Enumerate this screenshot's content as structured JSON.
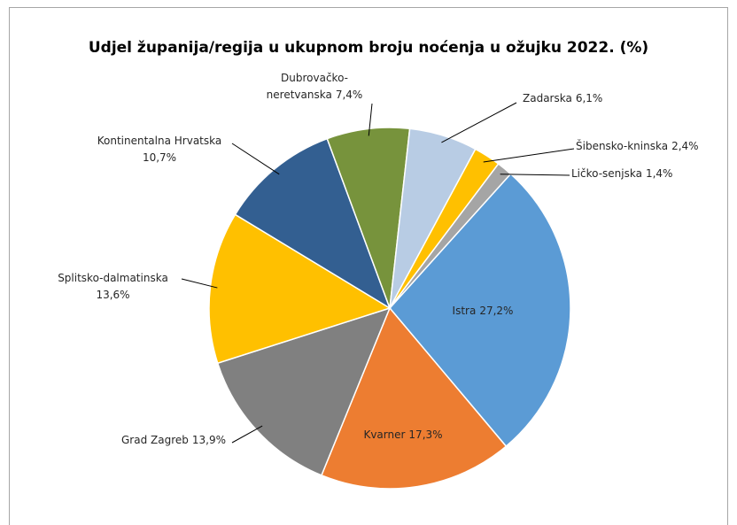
{
  "chart_data": {
    "type": "pie",
    "title": "Udjel županija/regija u ukupnom broju noćenja u ožujku 2022. (%)",
    "categories": [
      "Istra",
      "Kvarner",
      "Grad Zagreb",
      "Splitsko-dalmatinska",
      "Kontinentalna Hrvatska",
      "Dubrovačko-neretvanska",
      "Zadarska",
      "Šibensko-kninska",
      "Ličko-senjska"
    ],
    "values": [
      27.2,
      17.3,
      13.9,
      13.6,
      10.7,
      7.4,
      6.1,
      2.4,
      1.4
    ],
    "value_labels": [
      "27,2%",
      "17,3%",
      "13,9%",
      "13,6%",
      "10,7%",
      "7,4%",
      "6,1%",
      "2,4%",
      "1,4%"
    ],
    "colors": [
      "#5b9bd5",
      "#ed7d31",
      "#808080",
      "#ffc000",
      "#335f91",
      "#77933c",
      "#b8cce4",
      "#ffc000",
      "#a5a5a5"
    ]
  }
}
